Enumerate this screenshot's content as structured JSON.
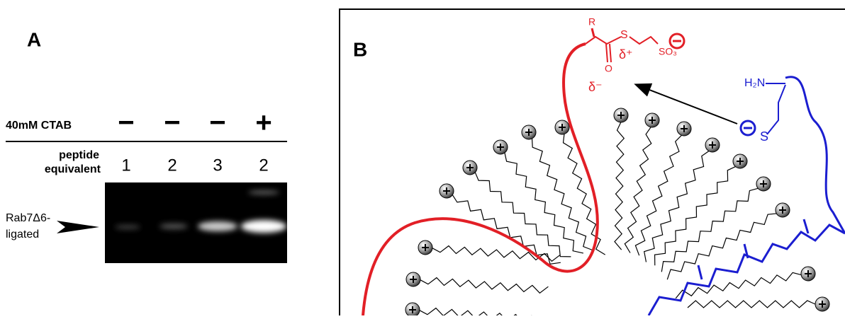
{
  "panel_a": {
    "label": "A",
    "row_label": "40mM CTAB",
    "signs": [
      "−",
      "−",
      "−",
      "+"
    ],
    "column_label": [
      "peptide",
      "equivalent"
    ],
    "lanes": [
      "1",
      "2",
      "3",
      "2"
    ],
    "band_label": [
      "Rab7Δ6-",
      "ligated"
    ]
  },
  "panel_b": {
    "label": "B",
    "thioester": {
      "r_group": "R",
      "sulfur": "S",
      "partial_positive": "δ⁺",
      "sulfonate": "SO₃",
      "oxygen": "O",
      "partial_negative": "δ⁻"
    },
    "cysteine": {
      "amine": "H₂N",
      "thiolate": "S"
    }
  }
}
